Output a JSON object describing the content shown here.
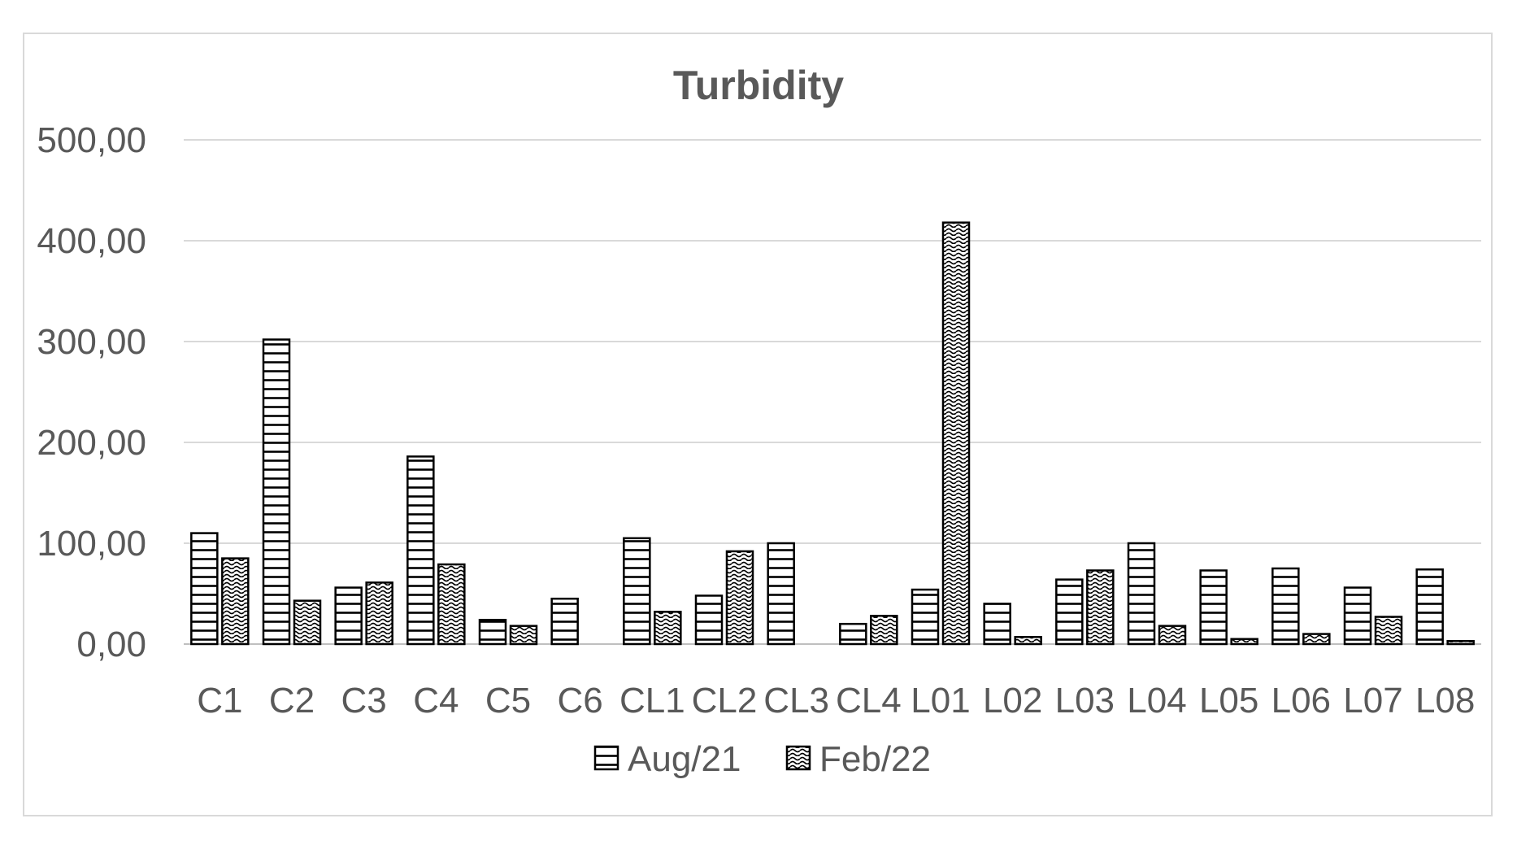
{
  "chart_data": {
    "type": "bar",
    "title": "Turbidity",
    "xlabel": "",
    "ylabel": "",
    "ylim": [
      0,
      500
    ],
    "yticks": [
      "0,00",
      "100,00",
      "200,00",
      "300,00",
      "400,00",
      "500,00"
    ],
    "grid": true,
    "legend_position": "bottom",
    "categories": [
      "C1",
      "C2",
      "C3",
      "C4",
      "C5",
      "C6",
      "CL1",
      "CL2",
      "CL3",
      "CL4",
      "L01",
      "L02",
      "L03",
      "L04",
      "L05",
      "L06",
      "L07",
      "L08"
    ],
    "series": [
      {
        "name": "Aug/21",
        "pattern": "horizontal-stripes",
        "values": [
          110,
          302,
          56,
          186,
          24,
          45,
          105,
          48,
          100,
          20,
          54,
          40,
          64,
          100,
          73,
          75,
          56,
          74
        ]
      },
      {
        "name": "Feb/22",
        "pattern": "wavy-dots",
        "values": [
          85,
          43,
          61,
          79,
          18,
          0,
          32,
          92,
          0,
          28,
          418,
          7,
          73,
          18,
          5,
          10,
          27,
          3
        ]
      }
    ],
    "colors": {
      "text": "#595959",
      "grid": "#d9d9d9",
      "bar_fill": "#ffffff",
      "bar_stroke": "#000000"
    }
  }
}
